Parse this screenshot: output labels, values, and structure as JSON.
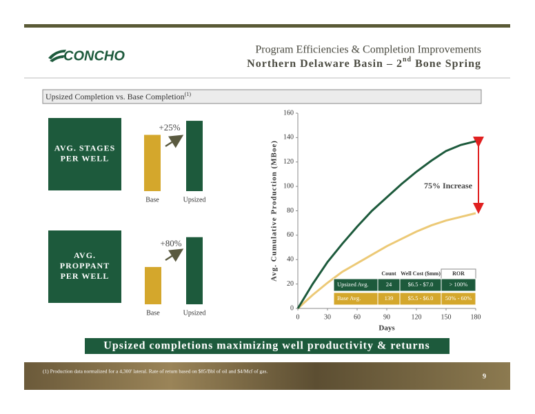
{
  "header": {
    "title_line1": "Program Efficiencies & Completion Improvements",
    "title_line2": [
      "Northern Delaware Basin – 2",
      "nd",
      " Bone Spring"
    ],
    "logo": "CONCHO"
  },
  "section": {
    "text": "Upsized Completion vs. Base Completion",
    "superscript": "(1)"
  },
  "chart_data": [
    {
      "type": "bar",
      "label": [
        "AVG. STAGES",
        "PER WELL"
      ],
      "annotation": "+25%",
      "categories": [
        "Base",
        "Upsized"
      ],
      "values": [
        100,
        125
      ],
      "colors": [
        "#d4a72c",
        "#1d5a3c"
      ],
      "ylim": [
        0,
        130
      ]
    },
    {
      "type": "bar",
      "label": [
        "AVG.",
        "PROPPANT",
        "PER WELL"
      ],
      "annotation": "+80%",
      "categories": [
        "Base",
        "Upsized"
      ],
      "values": [
        100,
        180
      ],
      "colors": [
        "#d4a72c",
        "#1d5a3c"
      ],
      "ylim": [
        0,
        185
      ]
    },
    {
      "type": "line",
      "ylabel": "Avg. Cumulative Production (MBoe)",
      "xlabel": "Days",
      "annotation": "75% Increase",
      "x": [
        0,
        15,
        30,
        45,
        60,
        75,
        90,
        105,
        120,
        135,
        150,
        165,
        180
      ],
      "series": [
        {
          "name": "Upsized Avg.",
          "color": "#1d5a3c",
          "values": [
            0,
            20,
            38,
            53,
            67,
            80,
            91,
            102,
            112,
            121,
            129,
            134,
            137
          ]
        },
        {
          "name": "Base Avg.",
          "color": "#ecc976",
          "values": [
            0,
            11,
            21,
            30,
            37,
            44,
            51,
            57,
            63,
            68,
            72,
            75,
            78
          ]
        }
      ],
      "xlim": [
        0,
        180
      ],
      "xticks": [
        0,
        30,
        60,
        90,
        120,
        150,
        180
      ],
      "ylim": [
        0,
        160
      ],
      "yticks": [
        0,
        20,
        40,
        60,
        80,
        100,
        120,
        140,
        160
      ]
    }
  ],
  "table": {
    "header": [
      "Count",
      "Well Cost ($mm)",
      "ROR"
    ],
    "rows": [
      [
        "Upsized Avg.",
        "24",
        "$6.5 - $7.0",
        "> 100%"
      ],
      [
        "Base Avg.",
        "139",
        "$5.5 - $6.0",
        "50% - 60%"
      ]
    ]
  },
  "banner": "Upsized completions maximizing well productivity & returns",
  "footnote": "(1) Production data normalized for a 4,300' lateral. Rate of return based on $85/Bbl of oil and $4/Mcf of gas.",
  "page_number": "9"
}
